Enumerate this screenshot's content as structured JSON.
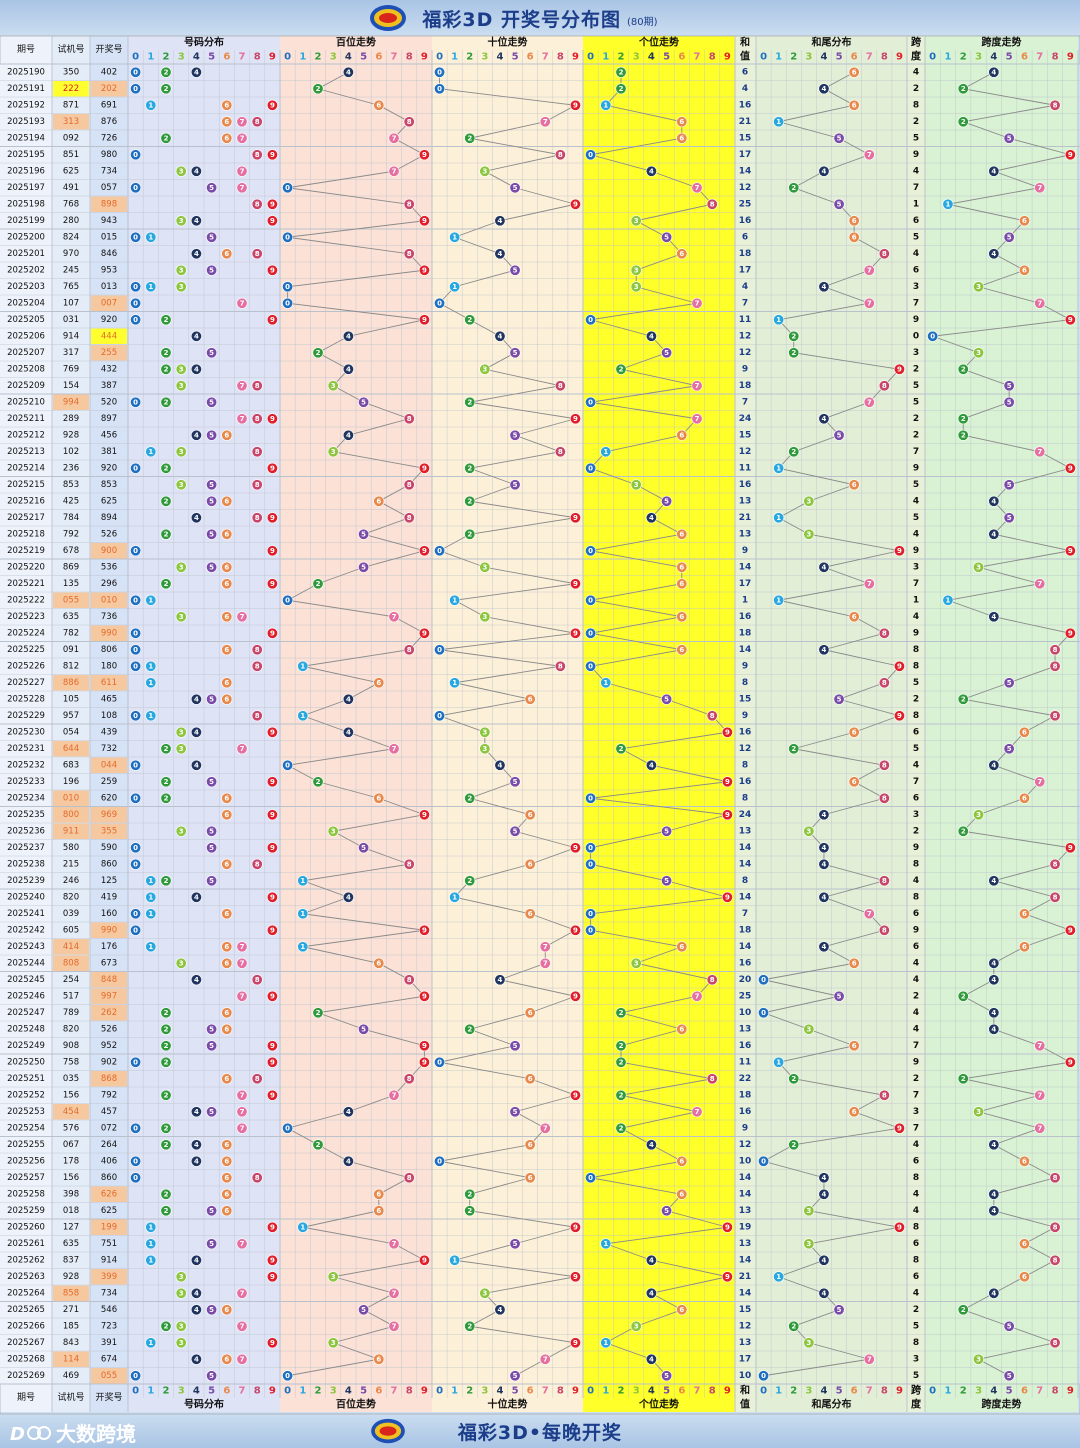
{
  "header": {
    "title": "福彩3D 开奖号分布图",
    "subtitle": "(80期)"
  },
  "footer": {
    "slogan": "福彩3D•每晚开奖",
    "brand": "大数跨境"
  },
  "columns": {
    "issue": "期号",
    "trial": "试机号",
    "draw": "开奖号",
    "dist": "号码分布",
    "hundreds": "百位走势",
    "tens": "十位走势",
    "units": "个位走势",
    "sum_top": "和",
    "sum_bottom": "值",
    "tail": "和尾分布",
    "span_top": "跨",
    "span_bottom": "度",
    "span_trend": "跨度走势"
  },
  "digits": [
    "0",
    "1",
    "2",
    "3",
    "4",
    "5",
    "6",
    "7",
    "8",
    "9"
  ],
  "colors": {
    "0": "#1f6fc0",
    "1": "#29a8e0",
    "2": "#2e9a3a",
    "3": "#8cc63e",
    "4": "#1f3560",
    "5": "#7a4aa8",
    "6": "#e8884a",
    "7": "#e46fa0",
    "8": "#c8456a",
    "9": "#e01e2a"
  },
  "chart_data": {
    "type": "table",
    "issue_start": 2025190,
    "issues": [
      "2025190",
      "2025191",
      "2025192",
      "2025193",
      "2025194",
      "2025195",
      "2025196",
      "2025197",
      "2025198",
      "2025199",
      "2025200",
      "2025201",
      "2025202",
      "2025203",
      "2025204",
      "2025205",
      "2025206",
      "2025207",
      "2025208",
      "2025209",
      "2025210",
      "2025211",
      "2025212",
      "2025213",
      "2025214",
      "2025215",
      "2025216",
      "2025217",
      "2025218",
      "2025219",
      "2025220",
      "2025221",
      "2025222",
      "2025223",
      "2025224",
      "2025225",
      "2025226",
      "2025227",
      "2025228",
      "2025229",
      "2025230",
      "2025231",
      "2025232",
      "2025233",
      "2025234",
      "2025235",
      "2025236",
      "2025237",
      "2025238",
      "2025239",
      "2025240",
      "2025241",
      "2025242",
      "2025243",
      "2025244",
      "2025245",
      "2025246",
      "2025247",
      "2025248",
      "2025249",
      "2025250",
      "2025251",
      "2025252",
      "2025253",
      "2025254",
      "2025255",
      "2025256",
      "2025257",
      "2025258",
      "2025259",
      "2025260",
      "2025261",
      "2025262",
      "2025263",
      "2025264",
      "2025265",
      "2025266",
      "2025267",
      "2025268",
      "2025269"
    ],
    "trial": [
      "350",
      "222",
      "871",
      "313",
      "092",
      "851",
      "625",
      "491",
      "768",
      "280",
      "824",
      "970",
      "245",
      "765",
      "107",
      "031",
      "914",
      "317",
      "769",
      "154",
      "994",
      "289",
      "928",
      "102",
      "236",
      "853",
      "425",
      "784",
      "792",
      "678",
      "869",
      "135",
      "055",
      "635",
      "782",
      "091",
      "812",
      "886",
      "105",
      "957",
      "054",
      "644",
      "683",
      "196",
      "010",
      "800",
      "911",
      "580",
      "215",
      "246",
      "820",
      "039",
      "605",
      "414",
      "808",
      "254",
      "517",
      "789",
      "820",
      "908",
      "758",
      "035",
      "156",
      "454",
      "576",
      "067",
      "178",
      "156",
      "398",
      "018",
      "127",
      "635",
      "837",
      "928",
      "858",
      "271",
      "185",
      "843",
      "114",
      "469"
    ],
    "draws": [
      "402",
      "202",
      "691",
      "876",
      "726",
      "980",
      "734",
      "057",
      "898",
      "943",
      "015",
      "846",
      "953",
      "013",
      "007",
      "920",
      "444",
      "255",
      "432",
      "387",
      "520",
      "897",
      "456",
      "381",
      "920",
      "853",
      "625",
      "894",
      "526",
      "900",
      "536",
      "296",
      "010",
      "736",
      "990",
      "806",
      "180",
      "611",
      "465",
      "108",
      "439",
      "732",
      "044",
      "259",
      "620",
      "969",
      "355",
      "590",
      "860",
      "125",
      "419",
      "160",
      "990",
      "176",
      "673",
      "848",
      "997",
      "262",
      "526",
      "952",
      "902",
      "868",
      "792",
      "457",
      "072",
      "264",
      "406",
      "860",
      "626",
      "625",
      "199",
      "751",
      "914",
      "399",
      "734",
      "546",
      "723",
      "391",
      "674",
      "055"
    ],
    "sums": [
      "6",
      "4",
      "16",
      "21",
      "15",
      "17",
      "14",
      "12",
      "25",
      "16",
      "6",
      "18",
      "17",
      "4",
      "7",
      "11",
      "12",
      "12",
      "9",
      "18",
      "7",
      "24",
      "15",
      "12",
      "11",
      "16",
      "13",
      "21",
      "13",
      "9",
      "14",
      "17",
      "1",
      "16",
      "18",
      "14",
      "9",
      "8",
      "15",
      "9",
      "16",
      "12",
      "8",
      "16",
      "8",
      "24",
      "13",
      "14",
      "14",
      "8",
      "14",
      "7",
      "18",
      "14",
      "16",
      "20",
      "25",
      "10",
      "13",
      "16",
      "11",
      "22",
      "18",
      "16",
      "9",
      "12",
      "10",
      "14",
      "14",
      "13",
      "19",
      "13",
      "14",
      "21",
      "14",
      "15",
      "12",
      "13",
      "17",
      "10"
    ],
    "spans": [
      "4",
      "2",
      "8",
      "2",
      "5",
      "9",
      "4",
      "7",
      "1",
      "6",
      "5",
      "4",
      "6",
      "3",
      "7",
      "9",
      "0",
      "3",
      "2",
      "5",
      "5",
      "2",
      "2",
      "7",
      "9",
      "5",
      "4",
      "5",
      "4",
      "9",
      "3",
      "7",
      "1",
      "4",
      "9",
      "8",
      "8",
      "5",
      "2",
      "8",
      "6",
      "5",
      "4",
      "7",
      "6",
      "3",
      "2",
      "9",
      "8",
      "4",
      "8",
      "6",
      "9",
      "6",
      "4",
      "4",
      "2",
      "4",
      "4",
      "7",
      "9",
      "2",
      "7",
      "3",
      "7",
      "4",
      "6",
      "8",
      "4",
      "4",
      "8",
      "6",
      "8",
      "6",
      "4",
      "2",
      "5",
      "8",
      "3",
      "5"
    ]
  }
}
